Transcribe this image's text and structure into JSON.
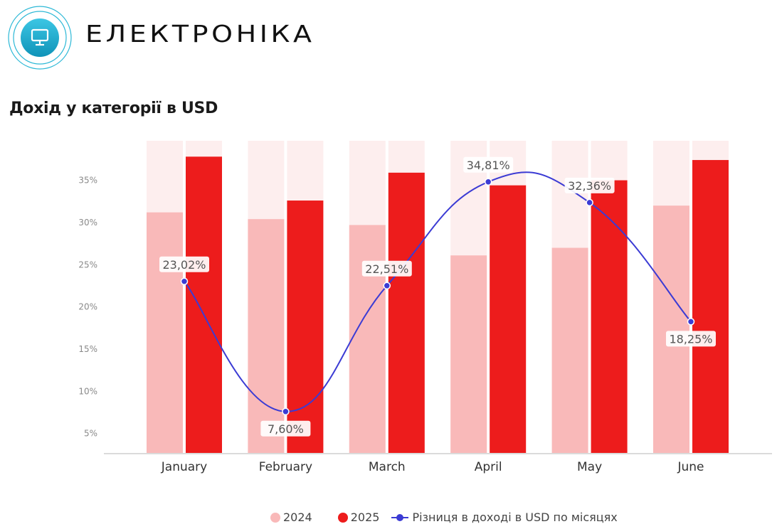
{
  "header": {
    "title": "ЕЛЕКТРОНІКА",
    "icon": "monitor-icon",
    "subtitle": "Дохід у категорії в USD"
  },
  "colors": {
    "series_2024": "#f9b9b9",
    "series_2025": "#ed1c1c",
    "background_bar": "#fdeeee",
    "line": "#3b3bd4",
    "icon_teal": "#19a9cc"
  },
  "legend": {
    "items": [
      {
        "label": "2024",
        "type": "dot",
        "color": "#f9b9b9"
      },
      {
        "label": "2025",
        "type": "dot",
        "color": "#ed1c1c"
      },
      {
        "label": "Різниця в доході в USD по місяцях",
        "type": "line",
        "color": "#3b3bd4"
      }
    ]
  },
  "chart_data": {
    "type": "bar",
    "title": "Дохід у категорії в USD",
    "xlabel": "",
    "ylabel": "",
    "categories": [
      "January",
      "February",
      "March",
      "April",
      "May",
      "June"
    ],
    "y_ticks": [
      "5%",
      "10%",
      "15%",
      "20%",
      "25%",
      "30%",
      "35%"
    ],
    "ylim": [
      0,
      40
    ],
    "grid": false,
    "legend_position": "bottom",
    "series": [
      {
        "name": "2024",
        "type": "bar",
        "values": [
          31.2,
          30.4,
          29.7,
          26.1,
          27.0,
          32.0
        ]
      },
      {
        "name": "2025",
        "type": "bar",
        "values": [
          37.8,
          32.6,
          35.9,
          34.4,
          35.0,
          37.4
        ]
      },
      {
        "name": "Різниця в доході в USD по місяцях",
        "type": "line",
        "values": [
          23.02,
          7.6,
          22.51,
          34.81,
          32.36,
          18.25
        ],
        "labels": [
          "23,02%",
          "7,60%",
          "22,51%",
          "34,81%",
          "32,36%",
          "18,25%"
        ]
      }
    ]
  }
}
